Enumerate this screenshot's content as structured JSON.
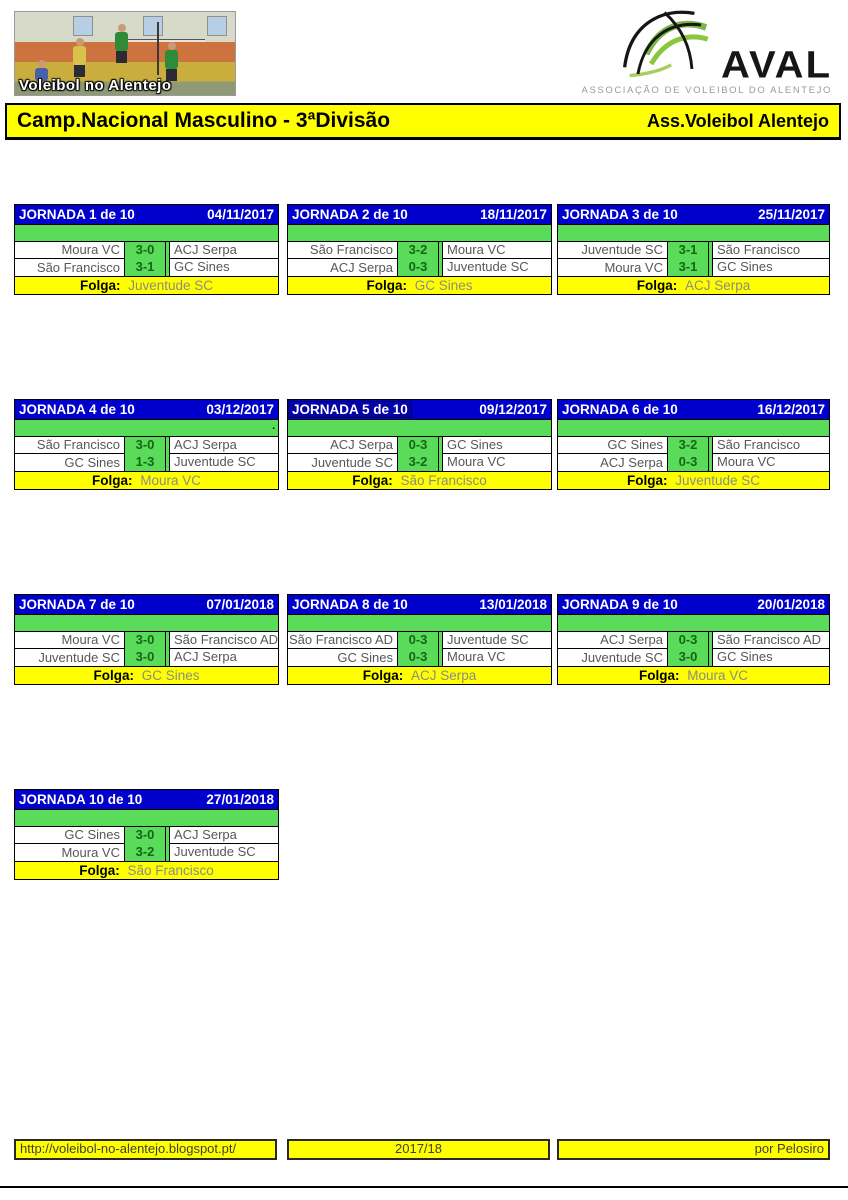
{
  "header": {
    "photo_caption": "Voleibol no Alentejo",
    "logo": {
      "acronym": "AVAL",
      "subtitle": "ASSOCIAÇÃO DE VOLEIBOL DO ALENTEJO"
    },
    "title_bar": {
      "left": "Camp.Nacional Masculino - 3ªDivisão",
      "right": "Ass.Voleibol Alentejo"
    }
  },
  "labels": {
    "folga": "Folga:"
  },
  "jornadas": [
    {
      "title": "JORNADA 1 de 10",
      "date": "04/11/2017",
      "matches": [
        {
          "home": "Moura VC",
          "score": "3-0",
          "away": "ACJ Serpa"
        },
        {
          "home": "São Francisco",
          "score": "3-1",
          "away": "GC Sines"
        }
      ],
      "folga": "Juventude SC"
    },
    {
      "title": "JORNADA 2 de 10",
      "date": "18/11/2017",
      "matches": [
        {
          "home": "São Francisco",
          "score": "3-2",
          "away": "Moura VC"
        },
        {
          "home": "ACJ Serpa",
          "score": "0-3",
          "away": "Juventude SC"
        }
      ],
      "folga": "GC Sines"
    },
    {
      "title": "JORNADA 3 de 10",
      "date": "25/11/2017",
      "matches": [
        {
          "home": "Juventude SC",
          "score": "3-1",
          "away": "São Francisco"
        },
        {
          "home": "Moura VC",
          "score": "3-1",
          "away": "GC Sines"
        }
      ],
      "folga": "ACJ Serpa"
    },
    {
      "title": "JORNADA 4 de 10",
      "date": "03/12/2017",
      "note": ".",
      "matches": [
        {
          "home": "São Francisco",
          "score": "3-0",
          "away": "ACJ Serpa"
        },
        {
          "home": "GC Sines",
          "score": "1-3",
          "away": "Juventude SC"
        }
      ],
      "folga": "Moura VC"
    },
    {
      "title": "JORNADA 5 de 10",
      "date": "09/12/2017",
      "highlighted": true,
      "matches": [
        {
          "home": "ACJ Serpa",
          "score": "0-3",
          "away": "GC Sines"
        },
        {
          "home": "Juventude SC",
          "score": "3-2",
          "away": "Moura VC"
        }
      ],
      "folga": "São Francisco"
    },
    {
      "title": "JORNADA 6 de 10",
      "date": "16/12/2017",
      "matches": [
        {
          "home": "GC Sines",
          "score": "3-2",
          "away": "São Francisco"
        },
        {
          "home": "ACJ Serpa",
          "score": "0-3",
          "away": "Moura VC"
        }
      ],
      "folga": "Juventude SC"
    },
    {
      "title": "JORNADA 7 de 10",
      "date": "07/01/2018",
      "matches": [
        {
          "home": "Moura VC",
          "score": "3-0",
          "away": "São Francisco AD"
        },
        {
          "home": "Juventude SC",
          "score": "3-0",
          "away": "ACJ Serpa"
        }
      ],
      "folga": "GC Sines"
    },
    {
      "title": "JORNADA 8 de 10",
      "date": "13/01/2018",
      "matches": [
        {
          "home": "São Francisco AD",
          "score": "0-3",
          "away": "Juventude SC"
        },
        {
          "home": "GC Sines",
          "score": "0-3",
          "away": "Moura VC"
        }
      ],
      "folga": "ACJ Serpa"
    },
    {
      "title": "JORNADA 9 de 10",
      "date": "20/01/2018",
      "matches": [
        {
          "home": "ACJ Serpa",
          "score": "0-3",
          "away": "São Francisco AD"
        },
        {
          "home": "Juventude SC",
          "score": "3-0",
          "away": "GC Sines"
        }
      ],
      "folga": "Moura VC"
    },
    {
      "title": "JORNADA 10 de 10",
      "date": "27/01/2018",
      "matches": [
        {
          "home": "GC Sines",
          "score": "3-0",
          "away": "ACJ Serpa"
        },
        {
          "home": "Moura VC",
          "score": "3-2",
          "away": "Juventude SC"
        }
      ],
      "folga": "São Francisco"
    }
  ],
  "footer": {
    "url": "http://voleibol-no-alentejo.blogspot.pt/",
    "season": "2017/18",
    "credit": "por Pelosiro"
  },
  "colors": {
    "header_blue": "#0000cd",
    "highlight_blue": "#0303a6",
    "band_green": "#5adc5a",
    "score_text_green": "#156615",
    "accent_yellow": "#ffff00",
    "team_text_gray": "#575757",
    "folga_team_gray": "#8b8b8b"
  }
}
